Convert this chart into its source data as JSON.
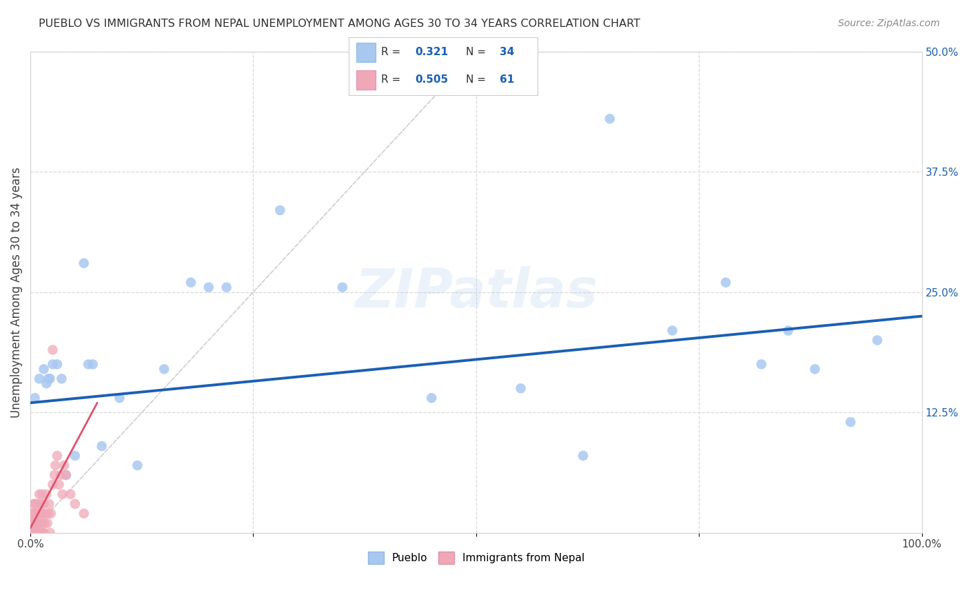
{
  "title": "PUEBLO VS IMMIGRANTS FROM NEPAL UNEMPLOYMENT AMONG AGES 30 TO 34 YEARS CORRELATION CHART",
  "source": "Source: ZipAtlas.com",
  "ylabel": "Unemployment Among Ages 30 to 34 years",
  "xlim": [
    0.0,
    1.0
  ],
  "ylim": [
    0.0,
    0.5
  ],
  "pueblo_color": "#a8c8f0",
  "nepal_color": "#f0a8b8",
  "pueblo_line_color": "#1a5fb4",
  "nepal_line_color": "#e0506a",
  "diagonal_color": "#c8c8c8",
  "R_pueblo": 0.321,
  "N_pueblo": 34,
  "R_nepal": 0.505,
  "N_nepal": 61,
  "pueblo_scatter_x": [
    0.005,
    0.01,
    0.015,
    0.018,
    0.02,
    0.022,
    0.025,
    0.03,
    0.035,
    0.04,
    0.05,
    0.06,
    0.065,
    0.07,
    0.08,
    0.1,
    0.12,
    0.15,
    0.18,
    0.2,
    0.22,
    0.28,
    0.35,
    0.45,
    0.55,
    0.62,
    0.65,
    0.72,
    0.78,
    0.82,
    0.85,
    0.88,
    0.92,
    0.95
  ],
  "pueblo_scatter_y": [
    0.14,
    0.16,
    0.17,
    0.155,
    0.16,
    0.16,
    0.175,
    0.175,
    0.16,
    0.06,
    0.08,
    0.28,
    0.175,
    0.175,
    0.09,
    0.14,
    0.07,
    0.17,
    0.26,
    0.255,
    0.255,
    0.335,
    0.255,
    0.14,
    0.15,
    0.08,
    0.43,
    0.21,
    0.26,
    0.175,
    0.21,
    0.17,
    0.115,
    0.2
  ],
  "nepal_scatter_x": [
    0.001,
    0.001,
    0.001,
    0.002,
    0.002,
    0.002,
    0.003,
    0.003,
    0.003,
    0.004,
    0.004,
    0.004,
    0.005,
    0.005,
    0.005,
    0.005,
    0.006,
    0.006,
    0.006,
    0.007,
    0.007,
    0.007,
    0.008,
    0.008,
    0.008,
    0.009,
    0.009,
    0.01,
    0.01,
    0.01,
    0.011,
    0.011,
    0.012,
    0.012,
    0.013,
    0.013,
    0.014,
    0.014,
    0.015,
    0.015,
    0.016,
    0.017,
    0.018,
    0.019,
    0.02,
    0.021,
    0.022,
    0.023,
    0.025,
    0.025,
    0.027,
    0.028,
    0.03,
    0.032,
    0.034,
    0.036,
    0.038,
    0.04,
    0.045,
    0.05,
    0.06
  ],
  "nepal_scatter_y": [
    0.0,
    0.01,
    0.005,
    0.0,
    0.02,
    0.01,
    0.0,
    0.01,
    0.02,
    0.0,
    0.01,
    0.03,
    0.0,
    0.01,
    0.02,
    0.03,
    0.0,
    0.01,
    0.02,
    0.0,
    0.01,
    0.02,
    0.0,
    0.01,
    0.03,
    0.0,
    0.02,
    0.0,
    0.01,
    0.04,
    0.0,
    0.02,
    0.0,
    0.03,
    0.01,
    0.04,
    0.0,
    0.02,
    0.0,
    0.03,
    0.01,
    0.02,
    0.04,
    0.01,
    0.02,
    0.03,
    0.0,
    0.02,
    0.19,
    0.05,
    0.06,
    0.07,
    0.08,
    0.05,
    0.06,
    0.04,
    0.07,
    0.06,
    0.04,
    0.03,
    0.02
  ],
  "pueblo_line_x": [
    0.0,
    1.0
  ],
  "pueblo_line_y": [
    0.135,
    0.225
  ],
  "nepal_line_x": [
    0.0,
    0.075
  ],
  "nepal_line_y": [
    0.005,
    0.135
  ],
  "watermark": "ZIPatlas",
  "background_color": "#ffffff",
  "grid_color": "#d8d8d8",
  "spine_color": "#d0d0d0",
  "text_color": "#404040",
  "blue_text": "#1a5fb4"
}
